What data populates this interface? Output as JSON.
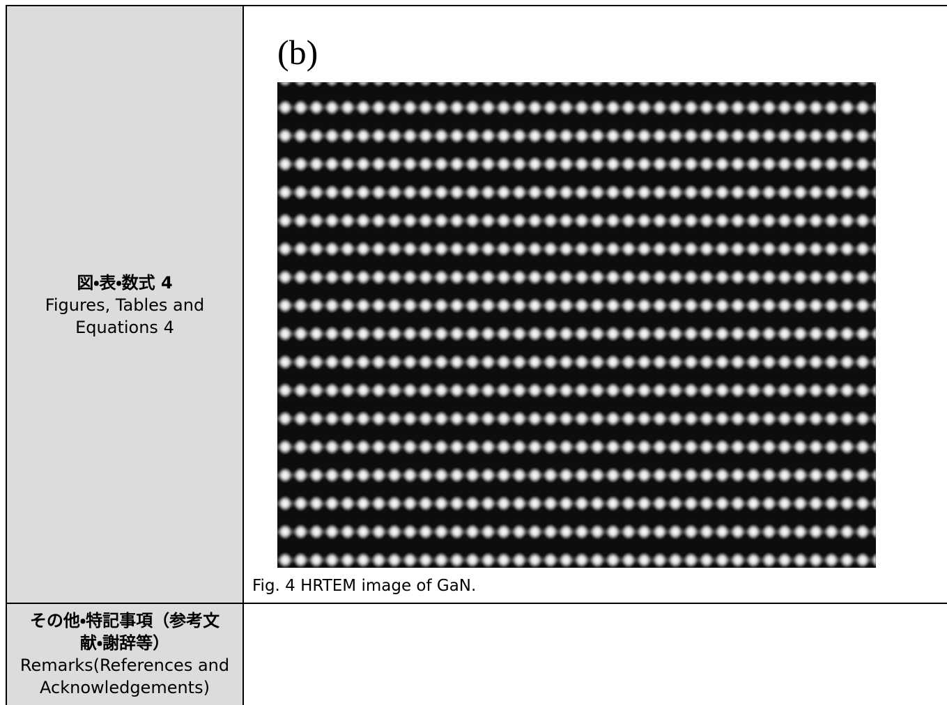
{
  "rows": [
    {
      "label_ja": "図・表・数式 4",
      "label_en": "Figures, Tables and Equations 4",
      "figure_label": "(b)",
      "caption": "Fig. 4 HRTEM image of GaN."
    },
    {
      "label_ja": "その他・特記事項（参考文献・謝辞等）",
      "label_en": "Remarks(References and Acknowledgements)"
    }
  ]
}
